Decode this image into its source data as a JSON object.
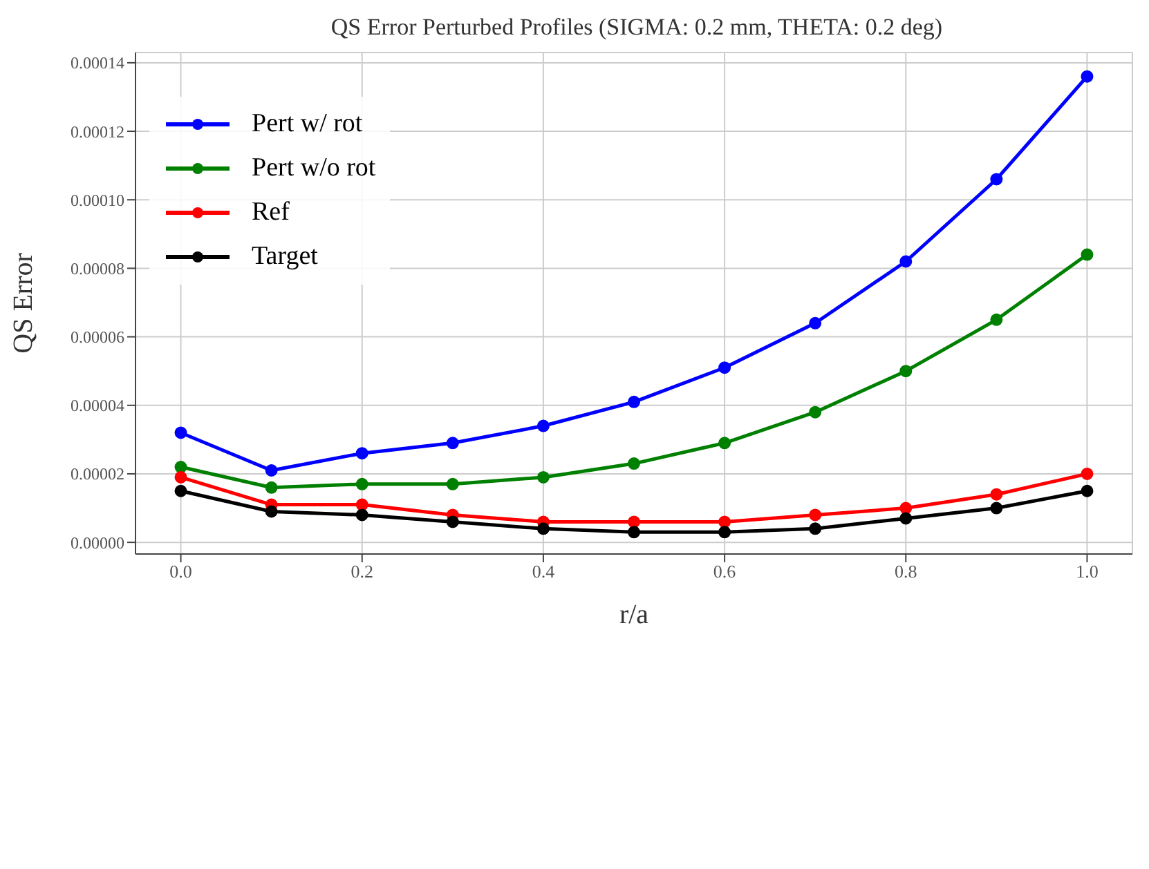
{
  "chart_data": {
    "type": "line",
    "title": "QS Error Perturbed Profiles (SIGMA: 0.2 mm, THETA: 0.2 deg)",
    "xlabel": "r/a",
    "ylabel": "QS Error",
    "x": [
      0,
      0.1,
      0.2,
      0.3,
      0.4,
      0.5,
      0.6,
      0.7,
      0.8,
      0.9,
      1.0
    ],
    "series": [
      {
        "name": "Pert w/ rot",
        "color": "#0000ff",
        "values": [
          3.2e-05,
          2.1e-05,
          2.6e-05,
          2.9e-05,
          3.4e-05,
          4.1e-05,
          5.1e-05,
          6.4e-05,
          8.2e-05,
          0.000106,
          0.000136
        ]
      },
      {
        "name": "Pert w/o rot",
        "color": "#008000",
        "values": [
          2.2e-05,
          1.6e-05,
          1.7e-05,
          1.7e-05,
          1.9e-05,
          2.3e-05,
          2.9e-05,
          3.8e-05,
          5e-05,
          6.5e-05,
          8.4e-05
        ]
      },
      {
        "name": "Ref",
        "color": "#ff0000",
        "values": [
          1.9e-05,
          1.1e-05,
          1.1e-05,
          8e-06,
          6e-06,
          6e-06,
          6e-06,
          8e-06,
          1e-05,
          1.4e-05,
          2e-05
        ]
      },
      {
        "name": "Target",
        "color": "#000000",
        "values": [
          1.5e-05,
          9e-06,
          8e-06,
          6e-06,
          4e-06,
          3e-06,
          3e-06,
          4e-06,
          7e-06,
          1e-05,
          1.5e-05
        ]
      }
    ],
    "xlim": [
      -0.05,
      1.05
    ],
    "ylim": [
      -3.4e-06,
      0.000143
    ],
    "xticks": [
      {
        "value": 0,
        "label": "0.0"
      },
      {
        "value": 0.2,
        "label": "0.2"
      },
      {
        "value": 0.4,
        "label": "0.4"
      },
      {
        "value": 0.6,
        "label": "0.6"
      },
      {
        "value": 0.8,
        "label": "0.8"
      },
      {
        "value": 1.0,
        "label": "1.0"
      }
    ],
    "yticks": [
      {
        "value": 0,
        "label": "0.00000"
      },
      {
        "value": 2e-05,
        "label": "0.00002"
      },
      {
        "value": 4e-05,
        "label": "0.00004"
      },
      {
        "value": 6e-05,
        "label": "0.00006"
      },
      {
        "value": 8e-05,
        "label": "0.00008"
      },
      {
        "value": 0.0001,
        "label": "0.00010"
      },
      {
        "value": 0.00012,
        "label": "0.00012"
      },
      {
        "value": 0.00014,
        "label": "0.00014"
      }
    ],
    "grid": true,
    "legend": "top left",
    "marker": "circle",
    "line_style": "solid"
  }
}
